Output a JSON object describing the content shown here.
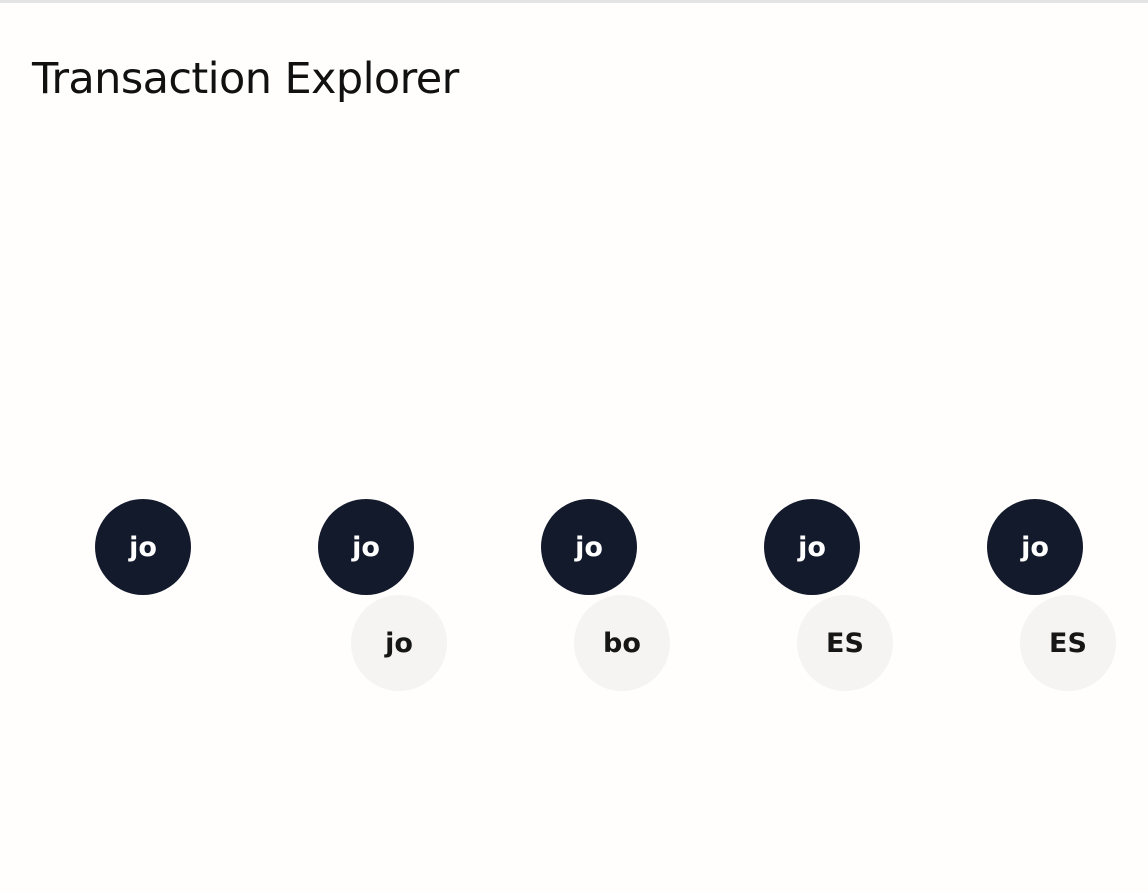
{
  "page": {
    "title": "Transaction Explorer"
  },
  "transactions": [
    {
      "from_initials": "jo",
      "to_initials": ""
    },
    {
      "from_initials": "jo",
      "to_initials": "jo"
    },
    {
      "from_initials": "jo",
      "to_initials": "bo"
    },
    {
      "from_initials": "jo",
      "to_initials": "ES"
    },
    {
      "from_initials": "jo",
      "to_initials": "ES"
    }
  ],
  "colors": {
    "primary_avatar_bg": "#131a2c",
    "secondary_avatar_bg": "#f5f4f2"
  }
}
